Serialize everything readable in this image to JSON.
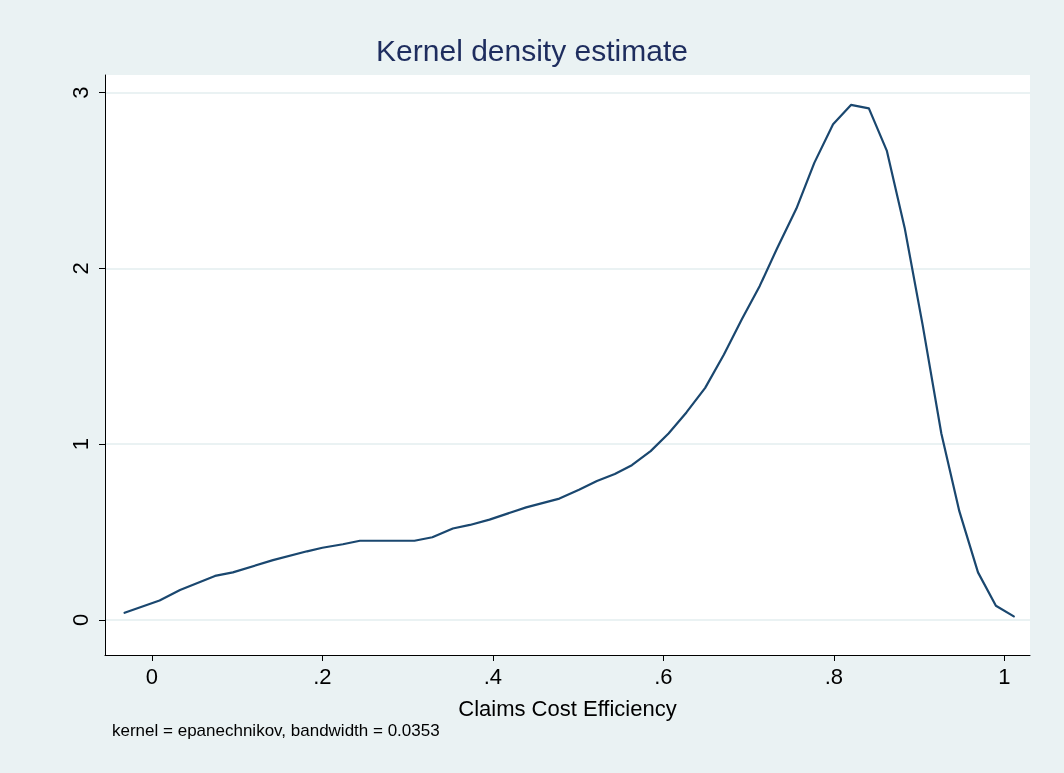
{
  "chart_data": {
    "type": "line",
    "title": "Kernel density estimate",
    "xlabel": "Claims Cost Efficiency",
    "annotations": [
      "kernel = epanechnikov, bandwidth = 0.0353"
    ],
    "x": [
      -0.032,
      0.009,
      0.033,
      0.074,
      0.095,
      0.142,
      0.182,
      0.2,
      0.224,
      0.244,
      0.308,
      0.329,
      0.353,
      0.373,
      0.396,
      0.439,
      0.478,
      0.501,
      0.522,
      0.543,
      0.563,
      0.585,
      0.606,
      0.627,
      0.649,
      0.671,
      0.692,
      0.713,
      0.733,
      0.756,
      0.777,
      0.799,
      0.82,
      0.841,
      0.862,
      0.883,
      0.904,
      0.926,
      0.947,
      0.969,
      0.99,
      1.011
    ],
    "series": [
      {
        "color": "#1a476f",
        "values": [
          0.04,
          0.11,
          0.17,
          0.25,
          0.27,
          0.34,
          0.39,
          0.41,
          0.43,
          0.45,
          0.45,
          0.47,
          0.52,
          0.54,
          0.57,
          0.64,
          0.69,
          0.74,
          0.79,
          0.83,
          0.88,
          0.96,
          1.06,
          1.18,
          1.32,
          1.51,
          1.71,
          1.9,
          2.11,
          2.34,
          2.6,
          2.82,
          2.93,
          2.91,
          2.67,
          2.23,
          1.68,
          1.06,
          0.62,
          0.27,
          0.08,
          0.02
        ]
      }
    ],
    "xlim": [
      -0.055,
      1.03
    ],
    "ylim": [
      -0.2,
      3.1
    ],
    "xticks": [
      0,
      {
        "value": 0.2,
        "label": ".2"
      },
      {
        "value": 0.4,
        "label": ".4"
      },
      {
        "value": 0.6,
        "label": ".6"
      },
      {
        "value": 0.8,
        "label": ".8"
      },
      1
    ],
    "yticks": [
      0,
      1,
      2,
      3
    ],
    "grid": "y",
    "marker": "none",
    "line_style": "solid"
  }
}
